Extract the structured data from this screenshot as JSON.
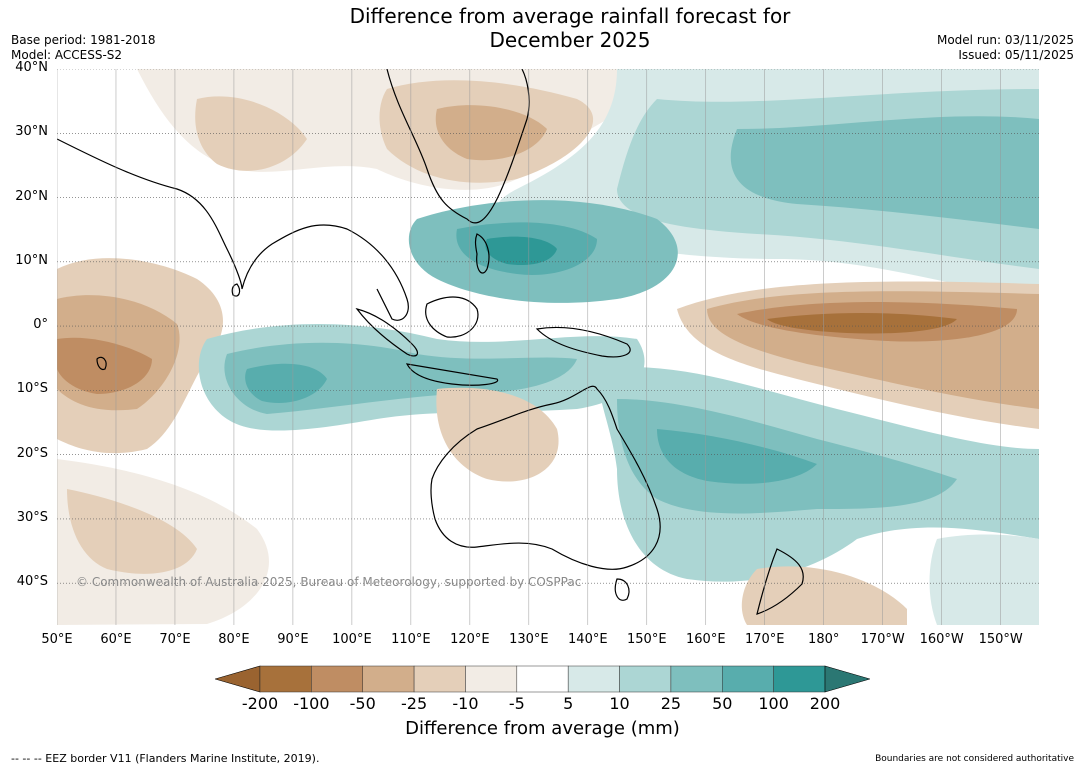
{
  "title_line1": "Difference from average rainfall forecast for",
  "title_line2": "December 2025",
  "meta": {
    "base_period": "Base period: 1981-2018",
    "model": "Model: ACCESS-S2",
    "model_run": "Model run: 03/11/2025",
    "issued": "Issued: 05/11/2025"
  },
  "latitudes": [
    {
      "label": "40°N",
      "deg": 40
    },
    {
      "label": "30°N",
      "deg": 30
    },
    {
      "label": "20°N",
      "deg": 20
    },
    {
      "label": "10°N",
      "deg": 10
    },
    {
      "label": "0°",
      "deg": 0
    },
    {
      "label": "10°S",
      "deg": -10
    },
    {
      "label": "20°S",
      "deg": -20
    },
    {
      "label": "30°S",
      "deg": -30
    },
    {
      "label": "40°S",
      "deg": -40
    }
  ],
  "longitudes": [
    {
      "label": "50°E",
      "deg": 50
    },
    {
      "label": "60°E",
      "deg": 60
    },
    {
      "label": "70°E",
      "deg": 70
    },
    {
      "label": "80°E",
      "deg": 80
    },
    {
      "label": "90°E",
      "deg": 90
    },
    {
      "label": "100°E",
      "deg": 100
    },
    {
      "label": "110°E",
      "deg": 110
    },
    {
      "label": "120°E",
      "deg": 120
    },
    {
      "label": "130°E",
      "deg": 130
    },
    {
      "label": "140°E",
      "deg": 140
    },
    {
      "label": "150°E",
      "deg": 150
    },
    {
      "label": "160°E",
      "deg": 160
    },
    {
      "label": "170°E",
      "deg": 170
    },
    {
      "label": "180°",
      "deg": 180
    },
    {
      "label": "170°W",
      "deg": 190
    },
    {
      "label": "160°W",
      "deg": 200
    },
    {
      "label": "150°W",
      "deg": 210
    }
  ],
  "map_extent": {
    "lon_min": 50,
    "lon_max": 216.5,
    "lat_min": -46.5,
    "lat_max": 40
  },
  "copyright": "© Commonwealth of Australia 2025, Bureau of Meteorology, supported by COSPPac",
  "legend": {
    "title": "Difference from average (mm)",
    "ticks": [
      "-200",
      "-100",
      "-50",
      "-25",
      "-10",
      "-5",
      "5",
      "10",
      "25",
      "50",
      "100",
      "200"
    ],
    "colors": {
      "below_min": "#9a6330",
      "bins": [
        "#a7713b",
        "#bf8d63",
        "#d2ae8b",
        "#e4cfb9",
        "#f2ece5",
        "#ffffff",
        "#d7e9e8",
        "#acd6d4",
        "#7ebfbe",
        "#58adad",
        "#2e9896"
      ],
      "above_max": "#2b7773"
    }
  },
  "footer": {
    "eez": "--  --  -- EEZ border V11 (Flanders Marine Institute, 2019).",
    "disclaimer": "Boundaries are not considered authoritative"
  }
}
